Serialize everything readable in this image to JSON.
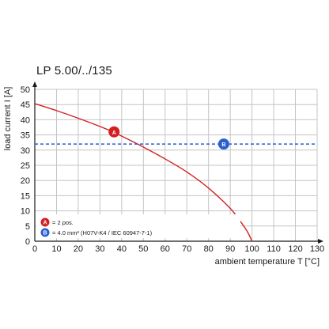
{
  "chart_data": {
    "type": "line",
    "title": "LP 5.00/../135",
    "xlabel": "ambient temperature T [°C]",
    "ylabel": "load current I [A]",
    "xlim": [
      0,
      130
    ],
    "ylim": [
      0,
      50
    ],
    "x_ticks": [
      0,
      10,
      20,
      30,
      40,
      50,
      60,
      70,
      80,
      90,
      100,
      110,
      120,
      130
    ],
    "y_ticks": [
      0,
      5,
      10,
      15,
      20,
      25,
      30,
      35,
      40,
      45,
      50
    ],
    "grid": true,
    "series": [
      {
        "marker": "A",
        "color": "#d42020",
        "style": "solid",
        "x": [
          0,
          10,
          20,
          30,
          36,
          40,
          50,
          60,
          70,
          80,
          90,
          95,
          98,
          100
        ],
        "y": [
          45.3,
          43.0,
          40.5,
          37.8,
          36.0,
          34.6,
          31.0,
          27.1,
          22.8,
          17.5,
          10.8,
          6.2,
          3.0,
          0
        ]
      },
      {
        "marker": "B",
        "color": "#2b5fd0",
        "style": "dashed",
        "x": [
          0,
          130
        ],
        "y": [
          32,
          32
        ]
      }
    ],
    "markers": [
      {
        "label": "A",
        "x": 36.5,
        "y": 36,
        "color": "#d42020"
      },
      {
        "label": "B",
        "x": 87,
        "y": 32,
        "color": "#2b5fd0"
      }
    ],
    "legend": {
      "placement": "bottom-left",
      "entries": [
        {
          "marker": "A",
          "text": "= 2 pos.",
          "color": "#d42020"
        },
        {
          "marker": "B",
          "text": "= 4.0 mm² (H07V-K4 / IEC 60947-7-1)",
          "color": "#2b5fd0"
        }
      ]
    }
  }
}
